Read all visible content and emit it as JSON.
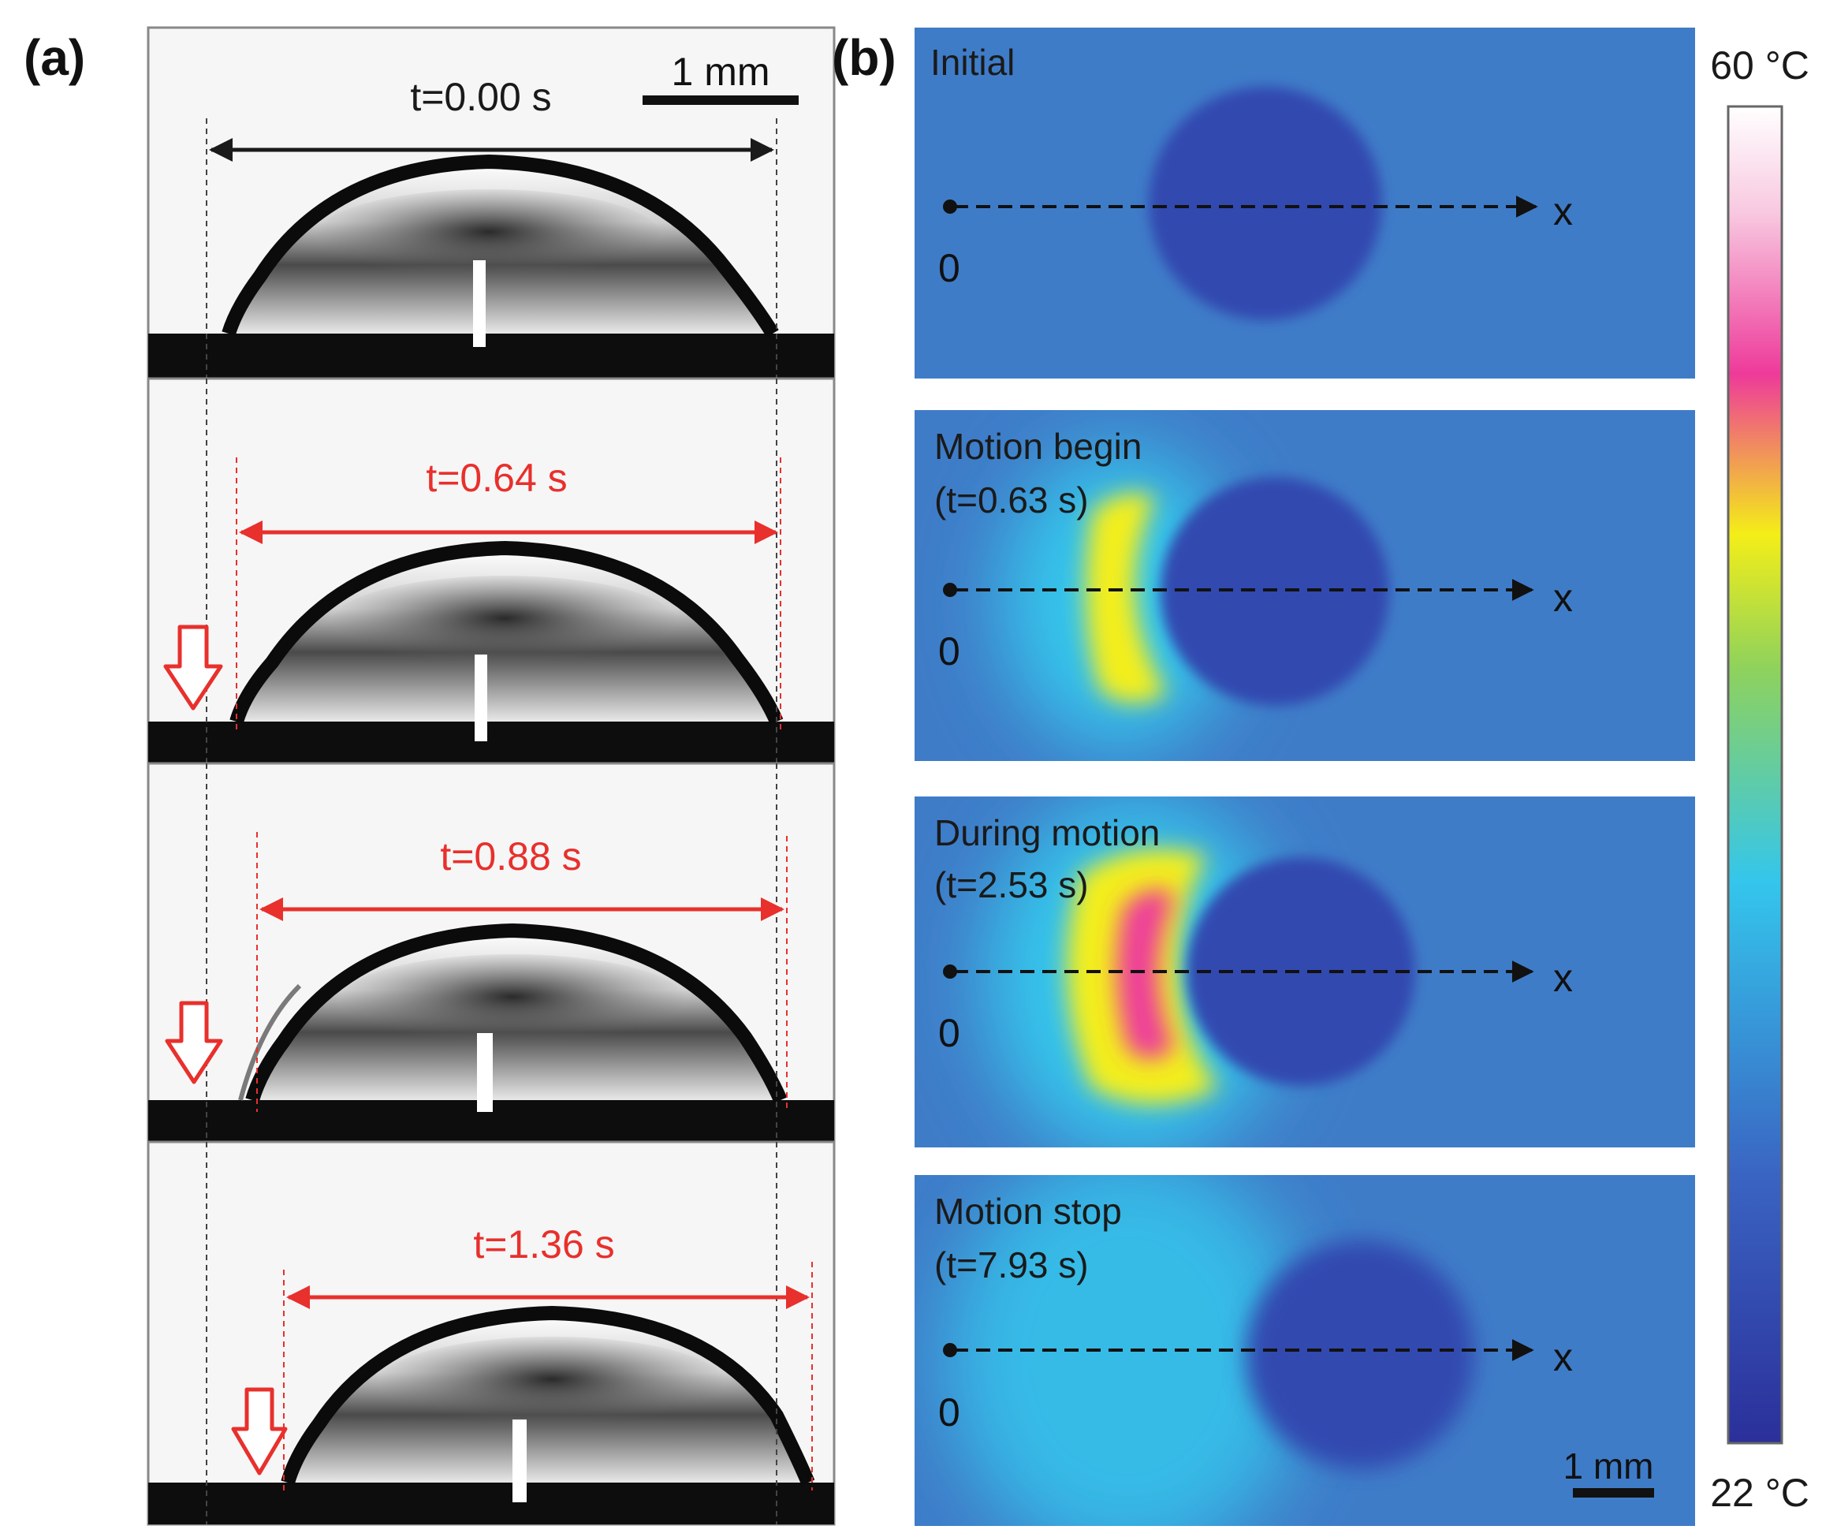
{
  "panel_a": {
    "label": "(a)",
    "scale_bar": "1 mm",
    "frames": [
      {
        "time": "t=0.00 s",
        "color": "#1a1a1a"
      },
      {
        "time": "t=0.64 s",
        "color": "#e8302c"
      },
      {
        "time": "t=0.88 s",
        "color": "#e8302c"
      },
      {
        "time": "t=1.36 s",
        "color": "#e8302c"
      }
    ]
  },
  "panel_b": {
    "label": "(b)",
    "maps": [
      {
        "title": "Initial",
        "time": ""
      },
      {
        "title": "Motion begin",
        "time": "(t=0.63 s)"
      },
      {
        "title": "During motion",
        "time": "(t=2.53 s)"
      },
      {
        "title": "Motion stop",
        "time": "(t=7.93 s)"
      }
    ],
    "origin_label": "0",
    "axis_label": "x",
    "scale_bar": "1 mm"
  },
  "colorbar": {
    "max_label": "60 °C",
    "min_label": "22 °C",
    "colors": [
      "#2b2f9a",
      "#3a64c2",
      "#34c6ec",
      "#f4ee18",
      "#ee3a9a",
      "#ffffff"
    ]
  },
  "colors": {
    "map_background": "#3f7cc8",
    "droplet": "#3148b0",
    "hot_zone": "#f3ee1e",
    "hottest_zone": "#ee4099"
  }
}
